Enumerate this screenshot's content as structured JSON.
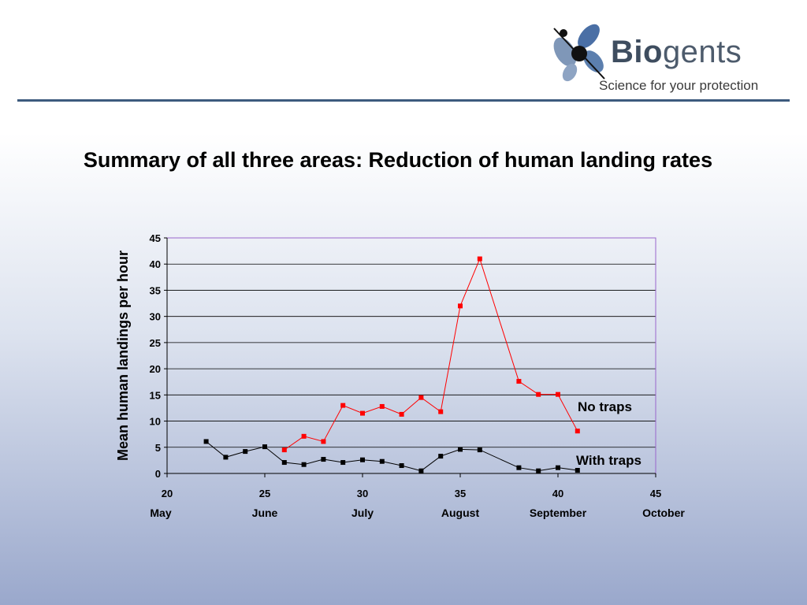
{
  "header": {
    "brand_bold": "Bio",
    "brand_rest": "gents",
    "tagline": "Science for your protection"
  },
  "slide": {
    "title": "Summary of all three areas: Reduction of human landing rates"
  },
  "colors": {
    "no_traps": "#ff0000",
    "with_traps": "#000000",
    "rule": "#3d5a7e",
    "plot_border": "#9966cc"
  },
  "chart_data": {
    "type": "line",
    "title": "",
    "xlabel": "",
    "ylabel": "Mean human landings per hour",
    "xlim": [
      20,
      45
    ],
    "ylim": [
      0,
      45
    ],
    "x_ticks": [
      20,
      25,
      30,
      35,
      40,
      45
    ],
    "y_ticks": [
      0,
      5,
      10,
      15,
      20,
      25,
      30,
      35,
      40,
      45
    ],
    "month_labels": [
      "May",
      "June",
      "July",
      "August",
      "September",
      "October"
    ],
    "grid": true,
    "series": [
      {
        "name": "No traps",
        "color": "#ff0000",
        "x": [
          26,
          27,
          28,
          29,
          30,
          31,
          32,
          33,
          34,
          35,
          36,
          38,
          39,
          40,
          41
        ],
        "y": [
          4.5,
          7.1,
          6.1,
          13.0,
          11.5,
          12.8,
          11.3,
          14.5,
          11.8,
          32.0,
          41.0,
          17.6,
          15.1,
          15.1,
          8.1
        ]
      },
      {
        "name": "With traps",
        "color": "#000000",
        "x": [
          22,
          23,
          24,
          25,
          26,
          27,
          28,
          29,
          30,
          31,
          32,
          33,
          34,
          35,
          36,
          38,
          39,
          40,
          41
        ],
        "y": [
          6.1,
          3.1,
          4.2,
          5.1,
          2.1,
          1.7,
          2.7,
          2.1,
          2.6,
          2.3,
          1.5,
          0.5,
          3.3,
          4.6,
          4.5,
          1.1,
          0.5,
          1.1,
          0.6
        ]
      }
    ]
  }
}
